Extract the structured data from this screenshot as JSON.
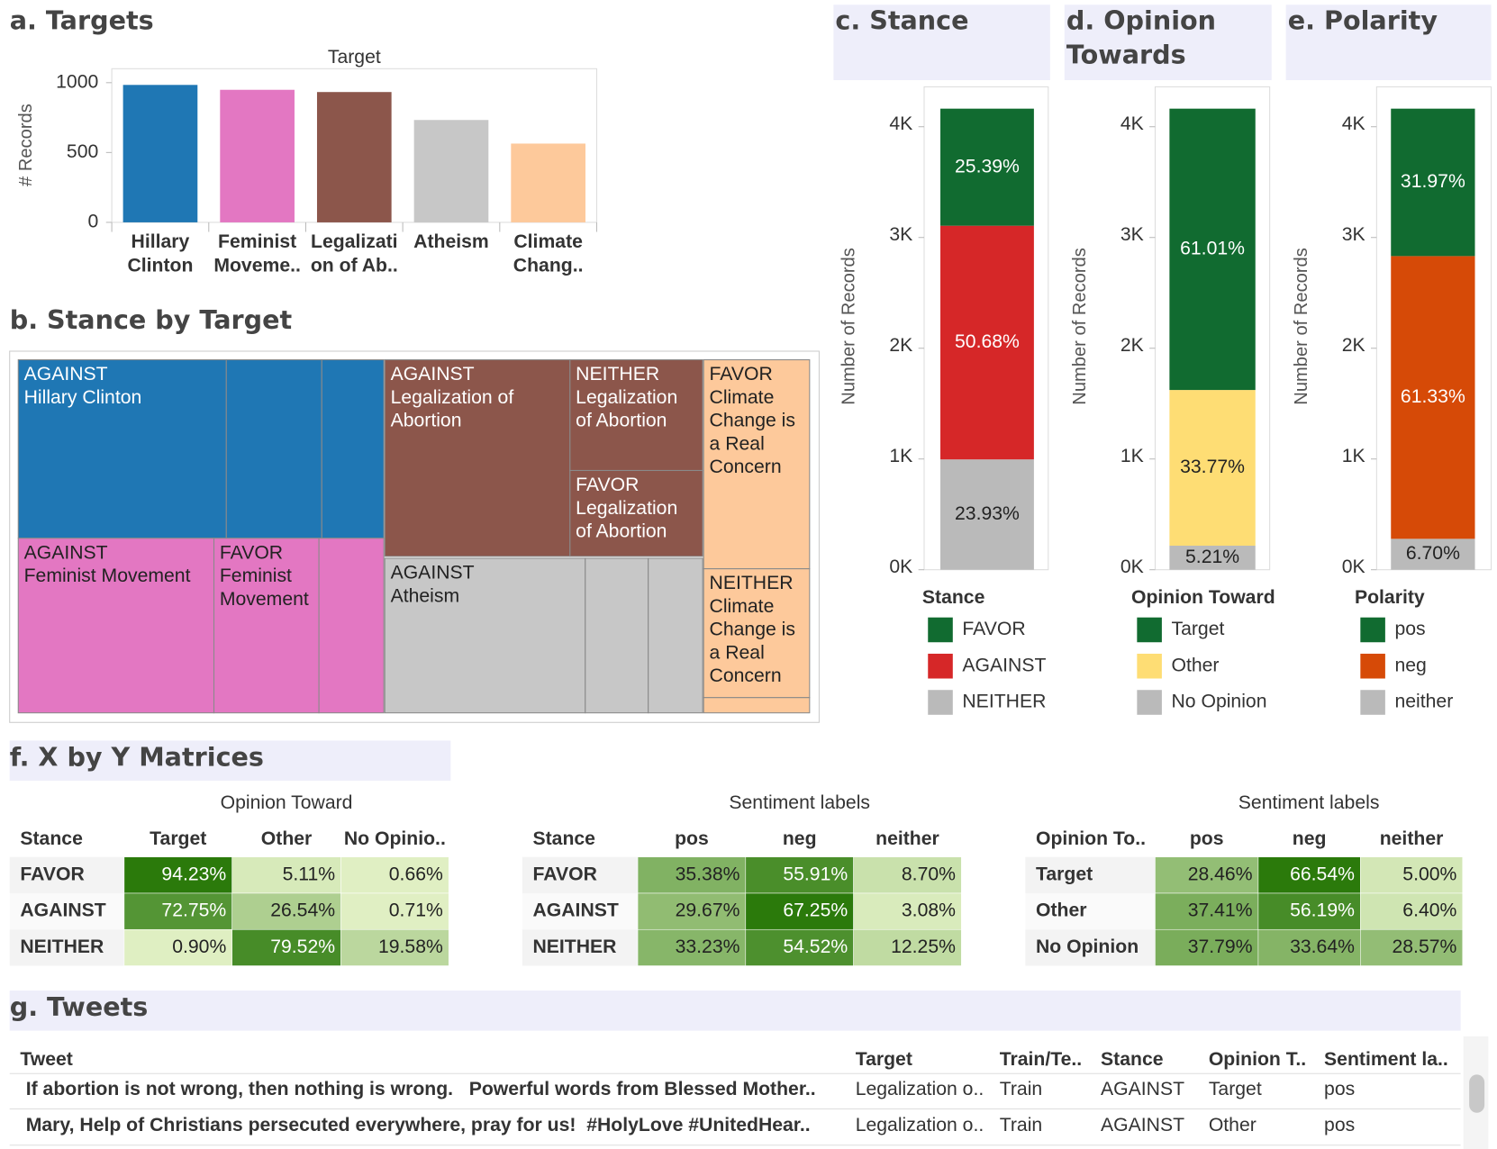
{
  "chart_data": [
    {
      "type": "bar",
      "title": "a. Targets",
      "x_title": "Target",
      "y_label": "# Records",
      "categories": [
        "Hillary Clinton",
        "Feminist Moveme..",
        "Legalizati on of Ab..",
        "Atheism",
        "Climate Chang.."
      ],
      "values": [
        984,
        949,
        933,
        733,
        564
      ],
      "colors": [
        "#1f77b4",
        "#e377c2",
        "#8c564b",
        "#c7c7c7",
        "#fdc99b"
      ],
      "ylim": [
        0,
        1100
      ],
      "yticks": [
        0,
        500,
        1000
      ]
    },
    {
      "type": "stacked_bar",
      "title": "c. Stance",
      "y_label": "Number of Records",
      "legend_title": "Stance",
      "series": [
        {
          "name": "FAVOR",
          "color": "#116b30",
          "values": [
            1057
          ],
          "value_labels": [
            "25.39%"
          ]
        },
        {
          "name": "AGAINST",
          "color": "#d62728",
          "values": [
            2110
          ],
          "value_labels": [
            "50.68%"
          ]
        },
        {
          "name": "NEITHER",
          "color": "#bababa",
          "values": [
            996
          ],
          "value_labels": [
            "23.93%"
          ]
        }
      ],
      "ylim": [
        0,
        4360
      ],
      "yticks": [
        {
          "value": 0,
          "label": "0K"
        },
        {
          "value": 1000,
          "label": "1K"
        },
        {
          "value": 2000,
          "label": "2K"
        },
        {
          "value": 3000,
          "label": "3K"
        },
        {
          "value": 4000,
          "label": "4K"
        }
      ]
    },
    {
      "type": "stacked_bar",
      "title": "d. Opinion Towards",
      "y_label": "Number of Records",
      "legend_title": "Opinion Toward",
      "series": [
        {
          "name": "Target",
          "color": "#116b30",
          "values": [
            2540
          ],
          "value_labels": [
            "61.01%"
          ]
        },
        {
          "name": "Other",
          "color": "#fedd74",
          "values": [
            1406
          ],
          "value_labels": [
            "33.77%"
          ]
        },
        {
          "name": "No Opinion",
          "color": "#bababa",
          "values": [
            217
          ],
          "value_labels": [
            "5.21%"
          ]
        }
      ],
      "ylim": [
        0,
        4360
      ],
      "yticks": [
        {
          "value": 0,
          "label": "0K"
        },
        {
          "value": 1000,
          "label": "1K"
        },
        {
          "value": 2000,
          "label": "2K"
        },
        {
          "value": 3000,
          "label": "3K"
        },
        {
          "value": 4000,
          "label": "4K"
        }
      ]
    },
    {
      "type": "stacked_bar",
      "title": "e. Polarity",
      "y_label": "Number of Records",
      "legend_title": "Polarity",
      "series": [
        {
          "name": "pos",
          "color": "#116b30",
          "values": [
            1331
          ],
          "value_labels": [
            "31.97%"
          ]
        },
        {
          "name": "neg",
          "color": "#d64a07",
          "values": [
            2553
          ],
          "value_labels": [
            "61.33%"
          ]
        },
        {
          "name": "neither",
          "color": "#bababa",
          "values": [
            279
          ],
          "value_labels": [
            "6.70%"
          ]
        }
      ],
      "ylim": [
        0,
        4360
      ],
      "yticks": [
        {
          "value": 0,
          "label": "0K"
        },
        {
          "value": 1000,
          "label": "1K"
        },
        {
          "value": 2000,
          "label": "2K"
        },
        {
          "value": 3000,
          "label": "3K"
        },
        {
          "value": 4000,
          "label": "4K"
        }
      ]
    }
  ],
  "treemap": {
    "title": "b. Stance by Target",
    "cells": [
      [
        "AGAINST",
        "Hillary Clinton"
      ],
      [
        "AGAINST",
        "Feminist Movement"
      ],
      [
        "FAVOR",
        "Feminist",
        "Movement"
      ],
      [
        "AGAINST",
        "Legalization of",
        "Abortion"
      ],
      [
        "NEITHER",
        "Legalization",
        "of Abortion"
      ],
      [
        "FAVOR",
        "Legalization",
        "of Abortion"
      ],
      [
        "AGAINST",
        "Atheism"
      ],
      [
        "FAVOR",
        "Climate",
        "Change is",
        "a Real",
        "Concern"
      ],
      [
        "NEITHER",
        "Climate",
        "Change is",
        "a Real",
        "Concern"
      ]
    ]
  },
  "matrices": {
    "title": "f. X by Y Matrices",
    "tables": [
      {
        "header": "Opinion Toward",
        "corner": "Stance",
        "columns": [
          "Target",
          "Other",
          "No Opinio.."
        ],
        "rows": [
          "FAVOR",
          "AGAINST",
          "NEITHER"
        ],
        "values": [
          [
            94.23,
            5.11,
            0.66
          ],
          [
            72.75,
            26.54,
            0.71
          ],
          [
            0.9,
            79.52,
            19.58
          ]
        ],
        "value_labels": [
          [
            "94.23%",
            "5.11%",
            "0.66%"
          ],
          [
            "72.75%",
            "26.54%",
            "0.71%"
          ],
          [
            "0.90%",
            "79.52%",
            "19.58%"
          ]
        ]
      },
      {
        "header": "Sentiment labels",
        "corner": "Stance",
        "columns": [
          "pos",
          "neg",
          "neither"
        ],
        "rows": [
          "FAVOR",
          "AGAINST",
          "NEITHER"
        ],
        "values": [
          [
            35.38,
            55.91,
            8.7
          ],
          [
            29.67,
            67.25,
            3.08
          ],
          [
            33.23,
            54.52,
            12.25
          ]
        ],
        "value_labels": [
          [
            "35.38%",
            "55.91%",
            "8.70%"
          ],
          [
            "29.67%",
            "67.25%",
            "3.08%"
          ],
          [
            "33.23%",
            "54.52%",
            "12.25%"
          ]
        ]
      },
      {
        "header": "Sentiment labels",
        "corner": "Opinion To..",
        "columns": [
          "pos",
          "neg",
          "neither"
        ],
        "rows": [
          "Target",
          "Other",
          "No Opinion"
        ],
        "values": [
          [
            28.46,
            66.54,
            5.0
          ],
          [
            37.41,
            56.19,
            6.4
          ],
          [
            37.79,
            33.64,
            28.57
          ]
        ],
        "value_labels": [
          [
            "28.46%",
            "66.54%",
            "5.00%"
          ],
          [
            "37.41%",
            "56.19%",
            "6.40%"
          ],
          [
            "37.79%",
            "33.64%",
            "28.57%"
          ]
        ]
      }
    ]
  },
  "tweets": {
    "title": "g. Tweets",
    "columns": [
      "Tweet",
      "Target",
      "Train/Te..",
      "Stance",
      "Opinion T..",
      "Sentiment la.."
    ],
    "rows": [
      [
        "If abortion is not wrong, then nothing is wrong.   Powerful words from Blessed Mother..",
        "Legalization o..",
        "Train",
        "AGAINST",
        "Target",
        "pos"
      ],
      [
        "Mary, Help of Christians persecuted everywhere, pray for us!  #HolyLove #UnitedHear..",
        "Legalization o..",
        "Train",
        "AGAINST",
        "Other",
        "pos"
      ]
    ]
  }
}
